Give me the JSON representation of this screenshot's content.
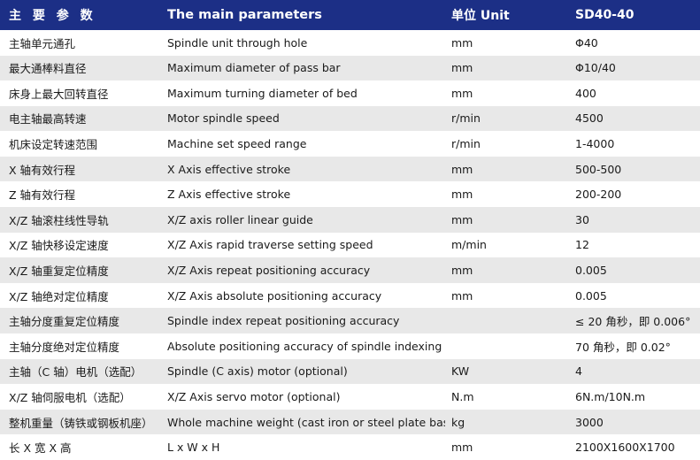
{
  "colors": {
    "header_bg": "#1c2f86",
    "header_text": "#ffffff",
    "row_shade": "#e8e8e8",
    "row_plain": "#ffffff"
  },
  "header": {
    "cn": "主 要 参 数",
    "en": "The main parameters",
    "unit": "单位 Unit",
    "model": "SD40-40"
  },
  "rows": [
    {
      "cn": "主轴单元通孔",
      "en": "Spindle unit through hole",
      "unit": "mm",
      "value": "Φ40"
    },
    {
      "cn": "最大通棒料直径",
      "en": "Maximum diameter of pass bar",
      "unit": "mm",
      "value": "Φ10/40"
    },
    {
      "cn": "床身上最大回转直径",
      "en": "Maximum turning diameter of bed",
      "unit": "mm",
      "value": "400"
    },
    {
      "cn": "电主轴最高转速",
      "en": "Motor spindle speed",
      "unit": "r/min",
      "value": "4500"
    },
    {
      "cn": "机床设定转速范围",
      "en": "Machine set speed range",
      "unit": "r/min",
      "value": "1-4000"
    },
    {
      "cn": "X 轴有效行程",
      "en": "X Axis effective stroke",
      "unit": "mm",
      "value": "500-500"
    },
    {
      "cn": "Z 轴有效行程",
      "en": "Z Axis effective stroke",
      "unit": "mm",
      "value": "200-200"
    },
    {
      "cn": "X/Z 轴滚柱线性导轨",
      "en": "X/Z axis roller linear guide",
      "unit": "mm",
      "value": "30"
    },
    {
      "cn": "X/Z 轴快移设定速度",
      "en": "X/Z Axis rapid traverse setting speed",
      "unit": "m/min",
      "value": "12"
    },
    {
      "cn": "X/Z 轴重复定位精度",
      "en": "X/Z Axis repeat positioning accuracy",
      "unit": "mm",
      "value": "0.005"
    },
    {
      "cn": "X/Z 轴绝对定位精度",
      "en": "X/Z Axis absolute positioning accuracy",
      "unit": "mm",
      "value": "0.005"
    },
    {
      "cn": "主轴分度重复定位精度",
      "en": "Spindle index repeat positioning accuracy",
      "unit": "",
      "value": "≤ 20 角秒，即 0.006°"
    },
    {
      "cn": "主轴分度绝对定位精度",
      "en": "Absolute positioning accuracy of spindle indexing",
      "unit": "",
      "value": "70 角秒，即 0.02°"
    },
    {
      "cn": "主轴（C 轴）电机（选配）",
      "en": "Spindle (C axis) motor (optional)",
      "unit": "KW",
      "value": "4"
    },
    {
      "cn": "X/Z 轴伺服电机（选配）",
      "en": "X/Z Axis servo motor (optional)",
      "unit": "N.m",
      "value": "6N.m/10N.m"
    },
    {
      "cn": "整机重量（铸铁或钢板机座）",
      "en": "Whole machine weight (cast iron or steel plate base)",
      "unit": "kg",
      "value": "3000"
    },
    {
      "cn": "长 X 宽 X 高",
      "en": "L x W x H",
      "unit": "mm",
      "value": "2100X1600X1700"
    }
  ]
}
